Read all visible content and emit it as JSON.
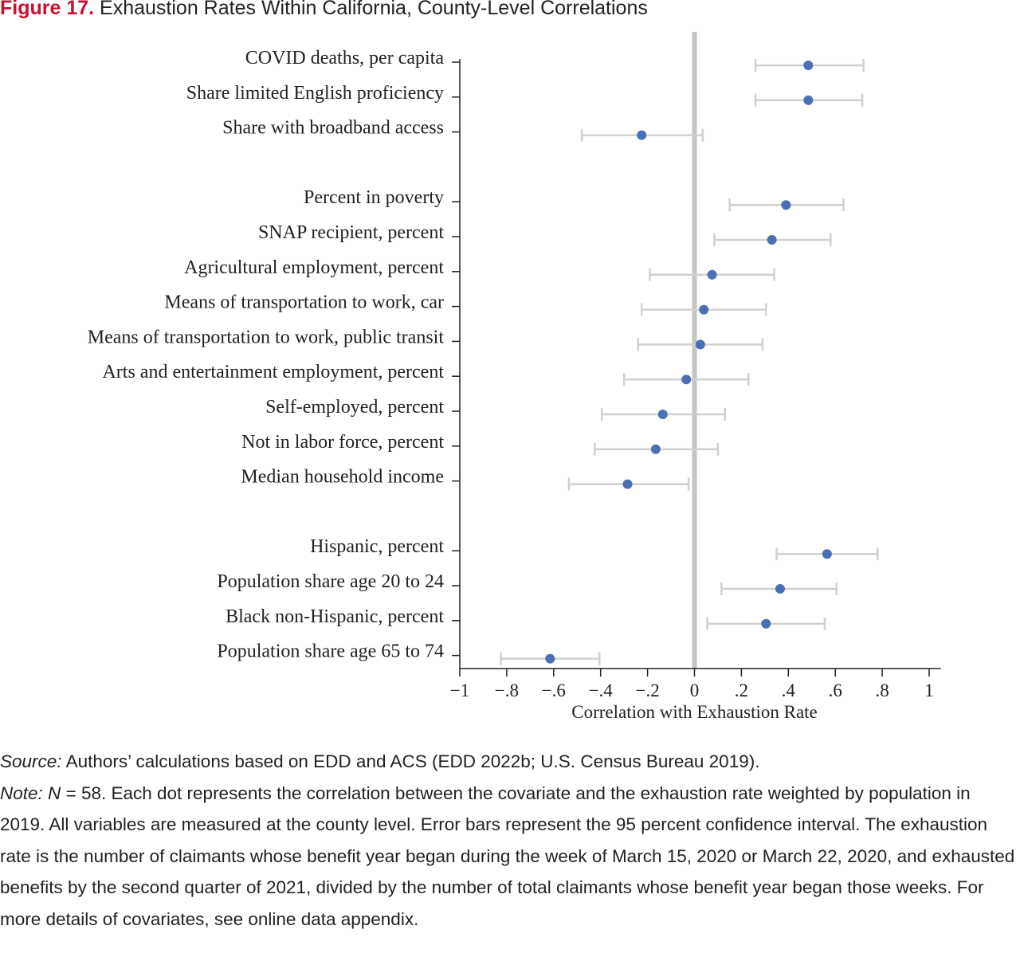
{
  "figure": {
    "label": "Figure 17.",
    "title": "Exhaustion Rates Within California, County-Level Correlations"
  },
  "chart_data": {
    "type": "scatter",
    "subtype": "dot-and-whisker",
    "xlabel": "Correlation with Exhaustion Rate",
    "xlim": [
      -1,
      1.05
    ],
    "xticks": [
      -1,
      -0.8,
      -0.6,
      -0.4,
      -0.2,
      0,
      0.2,
      0.4,
      0.6,
      0.8,
      1
    ],
    "xtick_labels": [
      "−1",
      "−.8",
      "−.6",
      "−.4",
      "−.2",
      "0",
      ".2",
      ".4",
      ".6",
      ".8",
      "1"
    ],
    "reference_line_x": 0,
    "grid": false,
    "legend": "none",
    "colors": {
      "point": "#4a6fb5",
      "error_bar": "#d0d0d0",
      "reference_line": "#c4c4c4",
      "axis": "#222222"
    },
    "groups": [
      {
        "items": [
          {
            "label": "COVID deaths, per capita",
            "value": 0.485,
            "ci": [
              0.26,
              0.72
            ]
          },
          {
            "label": "Share limited English proficiency",
            "value": 0.485,
            "ci": [
              0.26,
              0.715
            ]
          },
          {
            "label": "Share with broadband access",
            "value": -0.225,
            "ci": [
              -0.48,
              0.035
            ]
          }
        ]
      },
      {
        "items": [
          {
            "label": "Percent in poverty",
            "value": 0.39,
            "ci": [
              0.15,
              0.635
            ]
          },
          {
            "label": "SNAP recipient, percent",
            "value": 0.33,
            "ci": [
              0.085,
              0.58
            ]
          },
          {
            "label": "Agricultural employment, percent",
            "value": 0.075,
            "ci": [
              -0.19,
              0.34
            ]
          },
          {
            "label": "Means of transportation to work, car",
            "value": 0.04,
            "ci": [
              -0.225,
              0.305
            ]
          },
          {
            "label": "Means of transportation to work, public transit",
            "value": 0.025,
            "ci": [
              -0.24,
              0.29
            ]
          },
          {
            "label": "Arts and entertainment employment, percent",
            "value": -0.035,
            "ci": [
              -0.3,
              0.23
            ]
          },
          {
            "label": "Self-employed, percent",
            "value": -0.135,
            "ci": [
              -0.395,
              0.13
            ]
          },
          {
            "label": "Not in labor force, percent",
            "value": -0.165,
            "ci": [
              -0.425,
              0.1
            ]
          },
          {
            "label": "Median household income",
            "value": -0.285,
            "ci": [
              -0.535,
              -0.025
            ]
          }
        ]
      },
      {
        "items": [
          {
            "label": "Hispanic, percent",
            "value": 0.565,
            "ci": [
              0.35,
              0.78
            ]
          },
          {
            "label": "Population share age 20 to 24",
            "value": 0.365,
            "ci": [
              0.115,
              0.605
            ]
          },
          {
            "label": "Black non-Hispanic, percent",
            "value": 0.305,
            "ci": [
              0.055,
              0.555
            ]
          },
          {
            "label": "Population share age 65 to 74",
            "value": -0.615,
            "ci": [
              -0.825,
              -0.405
            ]
          }
        ]
      }
    ]
  },
  "notes": {
    "source_label": "Source:",
    "source_text": "Authors’ calculations based on EDD and ACS (EDD 2022b; U.S. Census Bureau 2019).",
    "note_label": "Note:",
    "note_n": "N",
    "note_text": "= 58. Each dot represents the correlation between the covariate and the exhaustion rate weighted by population in 2019. All variables are measured at the county level. Error bars represent the 95 percent confidence interval. The exhaustion rate is the number of claimants whose benefit year began during the week of March 15, 2020 or March 22, 2020, and exhausted benefits by the second quarter of 2021, divided by the number of total claimants whose benefit year began those weeks. For more details of covariates, see online data appendix."
  }
}
